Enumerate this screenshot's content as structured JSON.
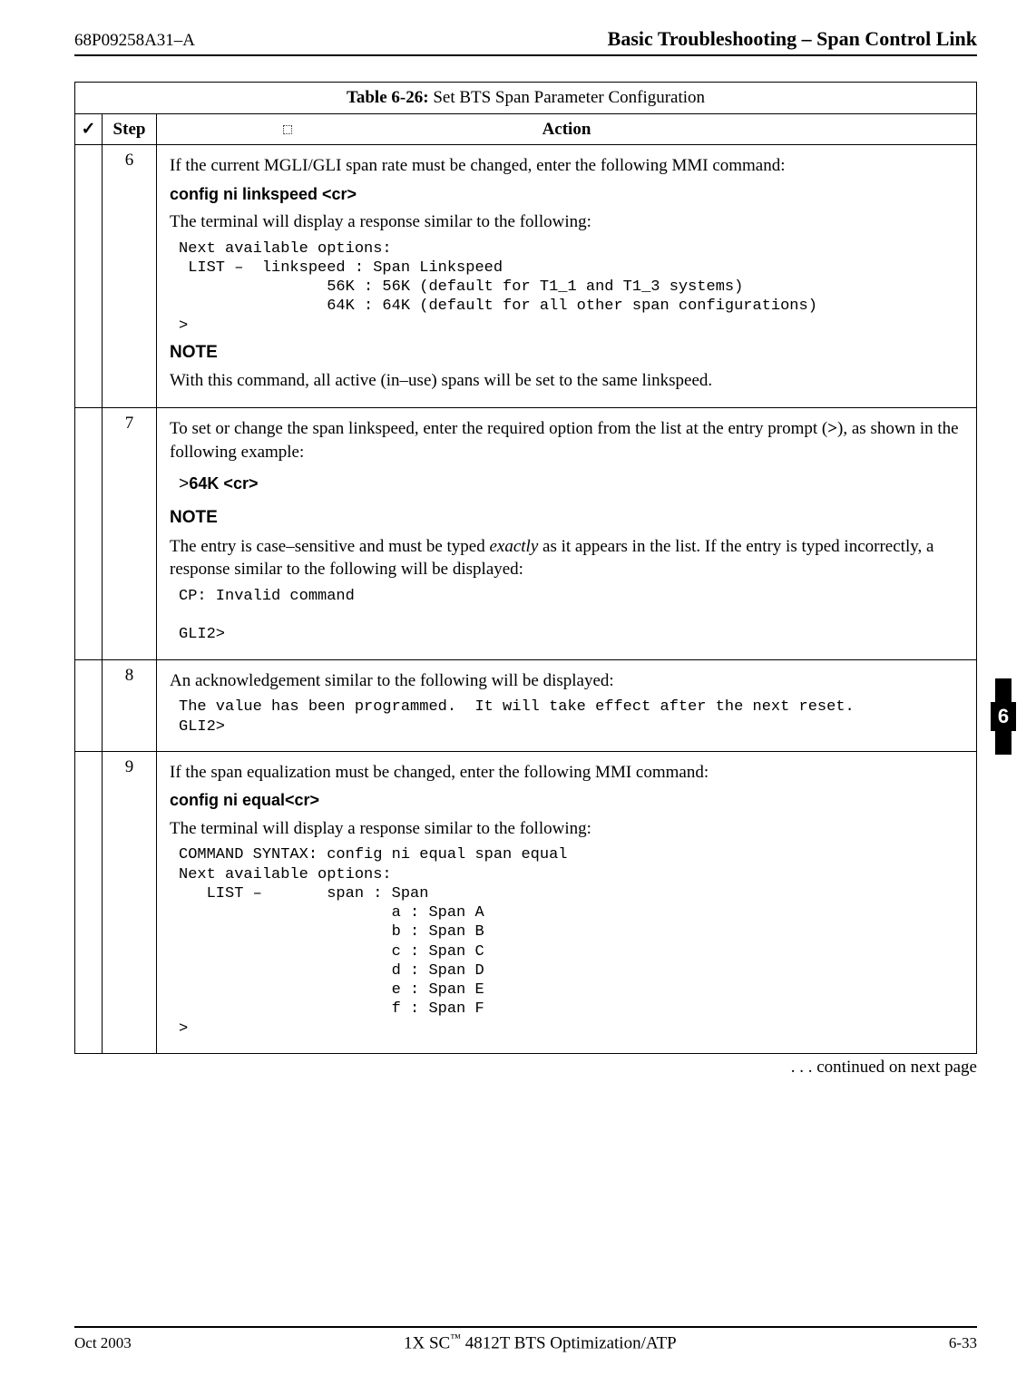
{
  "header": {
    "doc_id": "68P09258A31–A",
    "section_title": "Basic Troubleshooting – Span Control Link"
  },
  "table": {
    "title_prefix": "Table 6-26:",
    "title_text": " Set BTS Span Parameter Configuration",
    "col_check": "✓",
    "col_step": "Step",
    "col_action": "Action",
    "rows": {
      "r6": {
        "step": "6",
        "p1": "If the current MGLI/GLI span rate must be changed, enter the following MMI command:",
        "cmd": "config  ni  linkspeed <cr>",
        "p2": "The terminal will display a response similar to the following:",
        "pre": "Next available options:\n LIST –  linkspeed : Span Linkspeed\n                56K : 56K (default for T1_1 and T1_3 systems)\n                64K : 64K (default for all other span configurations)\n>",
        "note_hd": "NOTE",
        "note_body": "With this command, all active (in–use) spans will be set to the same linkspeed."
      },
      "r7": {
        "step": "7",
        "p1a": "To set or change the span linkspeed, enter the required option from the list at the entry prompt (",
        "gt": ">",
        "p1b": "), as shown in the following example:",
        "pre_prompt": ">",
        "pre_cmd": "64K <cr>",
        "note_hd": "NOTE",
        "note_a": "The entry is case–sensitive and must be typed ",
        "note_i": "exactly",
        "note_b": " as it appears in the list. If the entry is typed incorrectly, a response similar to the following will be displayed:",
        "pre2": "CP: Invalid command\n\nGLI2>"
      },
      "r8": {
        "step": "8",
        "p1": "An acknowledgement similar to the following will be displayed:",
        "pre": "The value has been programmed.  It will take effect after the next reset.\nGLI2>"
      },
      "r9": {
        "step": "9",
        "p1": "If the span equalization must be changed, enter the following MMI command:",
        "cmd": "config ni equal<cr>",
        "p2": "The terminal will display a response similar to the following:",
        "pre": "COMMAND SYNTAX: config ni equal span equal\nNext available options:\n   LIST –       span : Span\n                       a : Span A\n                       b : Span B\n                       c : Span C\n                       d : Span D\n                       e : Span E\n                       f : Span F\n>"
      }
    }
  },
  "continued": " . . . continued on next page",
  "side_tab": "6",
  "footer": {
    "left": "Oct 2003",
    "center_a": "1X SC",
    "center_tm": "™",
    "center_b": " 4812T BTS Optimization/ATP",
    "right": "6-33"
  }
}
